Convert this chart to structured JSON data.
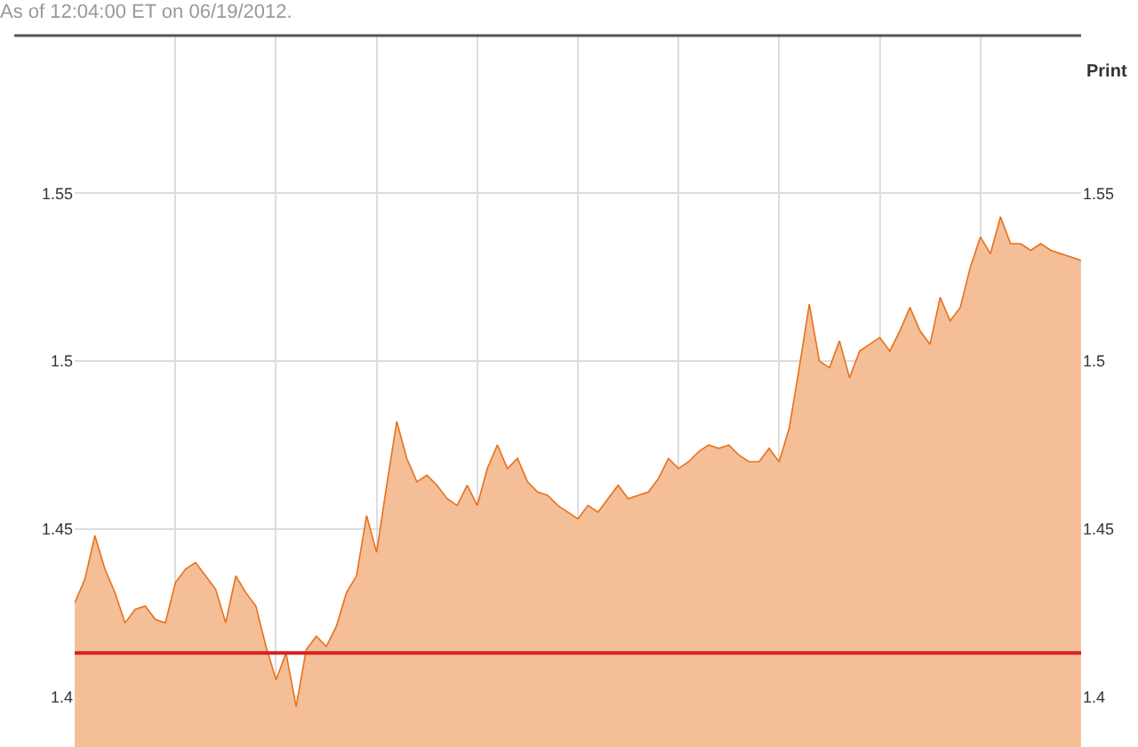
{
  "chart_data": {
    "type": "area",
    "title": "As of 12:04:00 ET on 06/19/2012.",
    "annotations": [
      "Print"
    ],
    "categories": [
      null,
      null,
      null,
      null,
      null,
      null,
      null,
      null,
      null,
      null,
      null,
      null,
      null,
      null,
      null,
      null,
      null,
      null,
      null,
      null,
      null,
      null,
      null,
      null,
      null,
      null,
      null,
      null,
      null,
      null,
      null,
      null,
      null,
      null,
      null,
      null,
      null,
      null,
      null,
      null,
      null,
      null,
      null,
      null,
      null,
      null,
      null,
      null,
      null,
      null,
      null,
      null,
      null,
      null,
      null,
      null,
      null,
      null,
      null,
      null,
      null,
      null,
      null,
      null,
      null,
      null,
      null,
      null,
      null,
      null,
      null,
      null,
      null,
      null,
      null,
      null,
      null,
      null,
      null,
      null,
      null,
      null,
      null,
      null,
      null,
      null,
      null,
      null,
      null,
      null,
      null,
      null,
      null,
      null,
      null,
      null,
      null,
      null,
      null,
      null,
      null
    ],
    "series": [
      {
        "color": "#e8701a",
        "values": [
          1.428,
          1.435,
          1.448,
          1.438,
          1.431,
          1.422,
          1.426,
          1.427,
          1.423,
          1.422,
          1.434,
          1.438,
          1.44,
          1.436,
          1.432,
          1.422,
          1.436,
          1.431,
          1.427,
          1.415,
          1.405,
          1.413,
          1.397,
          1.414,
          1.418,
          1.415,
          1.421,
          1.431,
          1.436,
          1.454,
          1.443,
          1.463,
          1.482,
          1.471,
          1.464,
          1.466,
          1.463,
          1.459,
          1.457,
          1.463,
          1.457,
          1.468,
          1.475,
          1.468,
          1.471,
          1.464,
          1.461,
          1.46,
          1.457,
          1.455,
          1.453,
          1.457,
          1.455,
          1.459,
          1.463,
          1.459,
          1.46,
          1.461,
          1.465,
          1.471,
          1.468,
          1.47,
          1.473,
          1.475,
          1.474,
          1.475,
          1.472,
          1.47,
          1.47,
          1.474,
          1.47,
          1.48,
          1.498,
          1.517,
          1.5,
          1.498,
          1.506,
          1.495,
          1.503,
          1.505,
          1.507,
          1.503,
          1.509,
          1.516,
          1.509,
          1.505,
          1.519,
          1.512,
          1.516,
          1.528,
          1.537,
          1.532,
          1.543,
          1.535,
          1.535,
          1.533,
          1.535,
          1.533,
          1.532,
          1.531,
          1.53
        ]
      }
    ],
    "ylim": [
      1.385,
      1.597
    ],
    "yticks": [
      1.4,
      1.45,
      1.5,
      1.55
    ],
    "y2lim": [
      1.385,
      1.597
    ],
    "y2ticks": [
      1.4,
      1.45,
      1.5,
      1.55
    ],
    "ref_lines": [
      {
        "axis": "y",
        "value": 1.413,
        "color": "#d62020"
      }
    ],
    "grid": true
  }
}
